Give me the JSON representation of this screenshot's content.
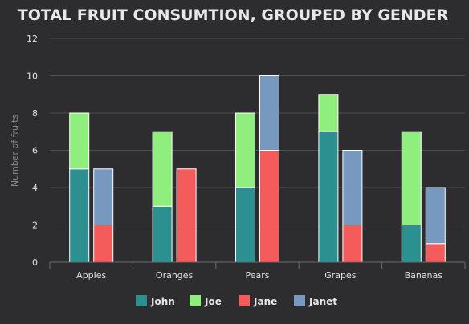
{
  "colors": {
    "background": "#2d2d2f",
    "grid": "#505053",
    "axis": "#6c6c70",
    "title": "#e8e8e8",
    "tick_label": "#e0e0e0",
    "ylabel": "#8a8a8e",
    "legend_text": "#e8e8e8",
    "bar_stroke": "#ffffff"
  },
  "chart_data": {
    "type": "bar",
    "stacked": true,
    "grouped": true,
    "title": "TOTAL FRUIT CONSUMTION, GROUPED BY GENDER",
    "xlabel": "",
    "ylabel": "Number of fruits",
    "ylim": [
      0,
      12
    ],
    "yticks": [
      0,
      2,
      4,
      6,
      8,
      10,
      12
    ],
    "grid": true,
    "legend_position": "bottom",
    "categories": [
      "Apples",
      "Oranges",
      "Pears",
      "Grapes",
      "Bananas"
    ],
    "stacks": [
      "male",
      "female"
    ],
    "series": [
      {
        "name": "John",
        "stack": "male",
        "color": "#2b908f",
        "values": [
          5,
          3,
          4,
          7,
          2
        ]
      },
      {
        "name": "Joe",
        "stack": "male",
        "color": "#90ee7e",
        "values": [
          3,
          4,
          4,
          2,
          5
        ]
      },
      {
        "name": "Jane",
        "stack": "female",
        "color": "#f45b5b",
        "values": [
          2,
          5,
          6,
          2,
          1
        ]
      },
      {
        "name": "Janet",
        "stack": "female",
        "color": "#7798bf",
        "values": [
          3,
          0,
          4,
          4,
          3
        ]
      }
    ]
  }
}
